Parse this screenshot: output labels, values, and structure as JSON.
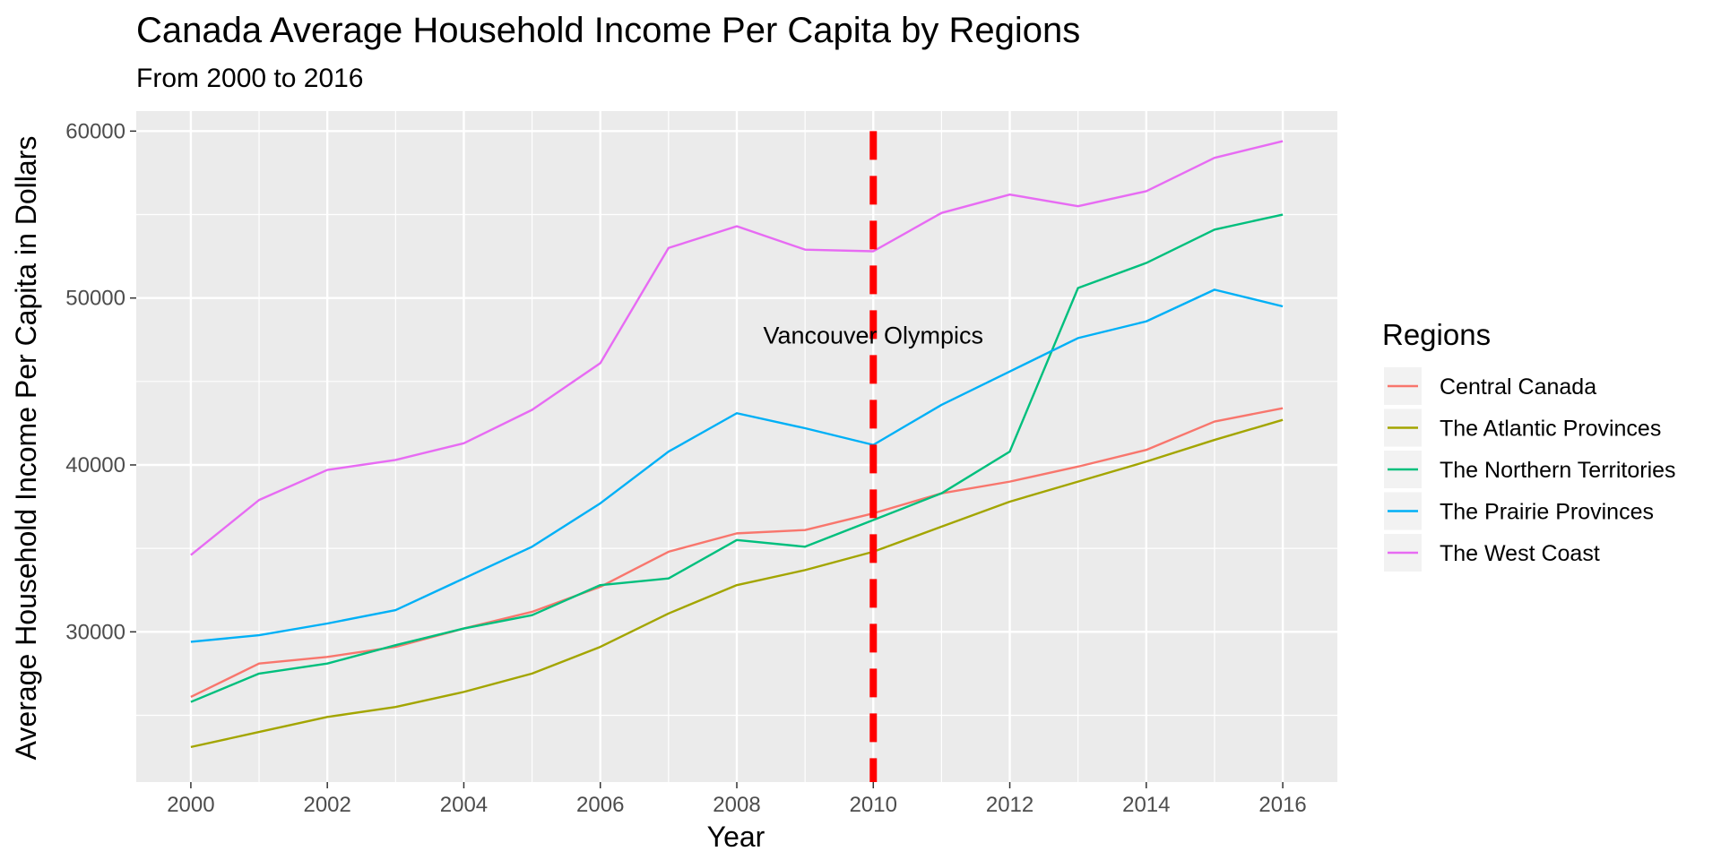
{
  "chart_data": {
    "type": "line",
    "title": "Canada Average Household Income Per Capita by Regions",
    "subtitle": "From 2000 to 2016",
    "xlabel": "Year",
    "ylabel": "Average Household Income Per Capita in Dollars",
    "xlim": [
      1999.2,
      2016.8
    ],
    "ylim": [
      21000,
      61200
    ],
    "x_ticks": [
      2000,
      2002,
      2004,
      2006,
      2008,
      2010,
      2012,
      2014,
      2016
    ],
    "x_tick_labels": [
      "2000",
      "2002",
      "2004",
      "2006",
      "2008",
      "2010",
      "2012",
      "2014",
      "2016"
    ],
    "y_ticks": [
      30000,
      40000,
      50000,
      60000
    ],
    "y_tick_labels": [
      "30000",
      "40000",
      "50000",
      "60000"
    ],
    "grid": true,
    "legend": {
      "title": "Regions",
      "position": "right"
    },
    "x": [
      2000,
      2001,
      2002,
      2003,
      2004,
      2005,
      2006,
      2007,
      2008,
      2009,
      2010,
      2011,
      2012,
      2013,
      2014,
      2015,
      2016
    ],
    "series": [
      {
        "name": "Central Canada",
        "color": "#F8766D",
        "values": [
          26100,
          28100,
          28500,
          29100,
          30200,
          31200,
          32700,
          34800,
          35900,
          36100,
          37100,
          38300,
          39000,
          39900,
          40900,
          42600,
          43400
        ]
      },
      {
        "name": "The Atlantic Provinces",
        "color": "#A3A500",
        "values": [
          23100,
          24000,
          24900,
          25500,
          26400,
          27500,
          29100,
          31100,
          32800,
          33700,
          34800,
          36300,
          37800,
          39000,
          40200,
          41500,
          42700
        ]
      },
      {
        "name": "The Northern Territories",
        "color": "#00BF7D",
        "values": [
          25800,
          27500,
          28100,
          29200,
          30200,
          31000,
          32800,
          33200,
          35500,
          35100,
          36700,
          38300,
          40800,
          50600,
          52100,
          54100,
          55000
        ]
      },
      {
        "name": "The Prairie Provinces",
        "color": "#00B0F6",
        "values": [
          29400,
          29800,
          30500,
          31300,
          33200,
          35100,
          37700,
          40800,
          43100,
          42200,
          41200,
          43600,
          45600,
          47600,
          48600,
          50500,
          49500
        ]
      },
      {
        "name": "The West Coast",
        "color": "#E76BF3",
        "values": [
          34600,
          37900,
          39700,
          40300,
          41300,
          43300,
          46100,
          53000,
          54300,
          52900,
          52800,
          55100,
          56200,
          55500,
          56400,
          58400,
          59400
        ]
      }
    ],
    "reference_line": {
      "x": 2010,
      "color": "#FF0000",
      "style": "dashed"
    },
    "annotation": {
      "text": "Vancouver Olympics",
      "x": 2010,
      "y": 47800
    }
  }
}
